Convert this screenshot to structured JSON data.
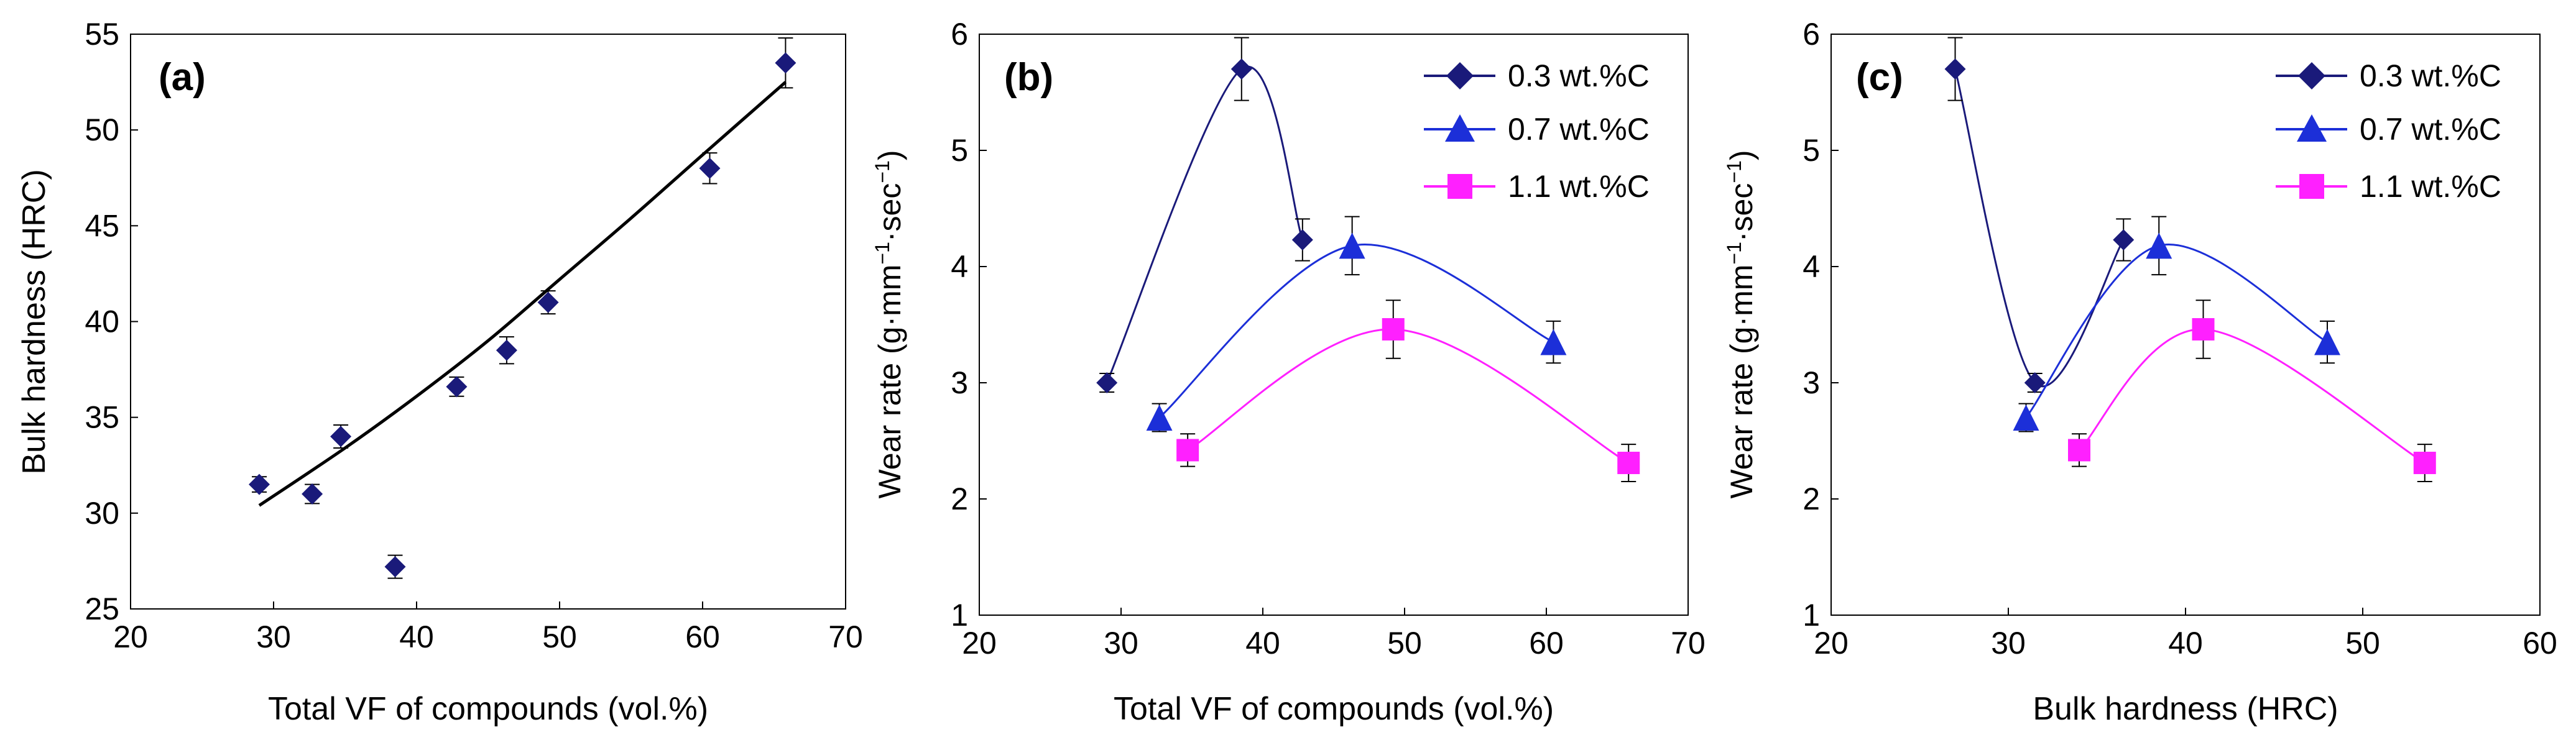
{
  "colors": {
    "c03": "#1a1a7a",
    "c07": "#1c2fd8",
    "c11": "#ff20ff",
    "fit": "#000000",
    "axis": "#000000",
    "errorbar": "#000000"
  },
  "chart_data": [
    {
      "type": "scatter",
      "panel_label": "(a)",
      "title": "",
      "xlabel": "Total VF of compounds (vol.%)",
      "ylabel": "Bulk hardness (HRC)",
      "xlim": [
        20,
        70
      ],
      "ylim": [
        25,
        55
      ],
      "xticks": [
        20,
        30,
        40,
        50,
        60,
        70
      ],
      "yticks": [
        25,
        30,
        35,
        40,
        45,
        50,
        55
      ],
      "xtick_labels": [
        "20",
        "30",
        "40",
        "50",
        "60",
        "70"
      ],
      "ytick_labels": [
        "25",
        "30",
        "35",
        "40",
        "45",
        "50",
        "55"
      ],
      "grid": false,
      "series": [
        {
          "name": "Bulk hardness",
          "marker": "diamond",
          "color_key": "c03",
          "x": [
            29,
            32.7,
            34.7,
            38.5,
            42.8,
            46.3,
            49.2,
            60.5,
            65.8
          ],
          "y": [
            31.5,
            31,
            34,
            27.2,
            36.6,
            38.5,
            41,
            48,
            53.5
          ],
          "err": [
            0.4,
            0.5,
            0.6,
            0.6,
            0.5,
            0.7,
            0.6,
            0.8,
            1.3
          ]
        }
      ],
      "fit_curve": {
        "name": "trend",
        "color_key": "fit",
        "x": [
          29,
          35,
          40,
          45,
          50,
          55,
          60,
          65.8
        ],
        "y": [
          30.4,
          33.4,
          36.1,
          39.0,
          42.2,
          45.4,
          48.7,
          52.5
        ]
      }
    },
    {
      "type": "line",
      "panel_label": "(b)",
      "title": "",
      "xlabel": "Total VF of compounds (vol.%)",
      "ylabel": "Wear rate (g·mm⁻¹·sec⁻¹)",
      "xlim": [
        20,
        70
      ],
      "ylim": [
        1,
        6
      ],
      "xticks": [
        20,
        30,
        40,
        50,
        60,
        70
      ],
      "yticks": [
        1,
        2,
        3,
        4,
        5,
        6
      ],
      "xtick_labels": [
        "20",
        "30",
        "40",
        "50",
        "60",
        "70"
      ],
      "ytick_labels": [
        "1",
        "2",
        "3",
        "4",
        "5",
        "6"
      ],
      "legend_position": "top-right",
      "grid": false,
      "series": [
        {
          "name": "0.3 wt.%C",
          "marker": "diamond",
          "color_key": "c03",
          "x": [
            29,
            38.5,
            42.8
          ],
          "y": [
            3,
            5.7,
            4.23
          ],
          "err": [
            0.08,
            0.27,
            0.18
          ]
        },
        {
          "name": "0.7 wt.%C",
          "marker": "triangle",
          "color_key": "c07",
          "x": [
            32.7,
            46.3,
            60.5
          ],
          "y": [
            2.7,
            4.18,
            3.35
          ],
          "err": [
            0.12,
            0.25,
            0.18
          ]
        },
        {
          "name": "1.1 wt.%C",
          "marker": "square",
          "color_key": "c11",
          "x": [
            34.7,
            49.2,
            65.8
          ],
          "y": [
            2.42,
            3.46,
            2.31
          ],
          "err": [
            0.14,
            0.25,
            0.16
          ]
        }
      ]
    },
    {
      "type": "line",
      "panel_label": "(c)",
      "title": "",
      "xlabel": "Bulk hardness (HRC)",
      "ylabel": "Wear rate (g·mm⁻¹·sec⁻¹)",
      "xlim": [
        20,
        60
      ],
      "ylim": [
        1,
        6
      ],
      "xticks": [
        20,
        30,
        40,
        50,
        60
      ],
      "yticks": [
        1,
        2,
        3,
        4,
        5,
        6
      ],
      "xtick_labels": [
        "20",
        "30",
        "40",
        "50",
        "60"
      ],
      "ytick_labels": [
        "1",
        "2",
        "3",
        "4",
        "5",
        "6"
      ],
      "legend_position": "top-right",
      "grid": false,
      "series": [
        {
          "name": "0.3 wt.%C",
          "marker": "diamond",
          "color_key": "c03",
          "x": [
            27,
            31.5,
            36.5
          ],
          "y": [
            5.7,
            3,
            4.23
          ],
          "err": [
            0.27,
            0.08,
            0.18
          ]
        },
        {
          "name": "0.7 wt.%C",
          "marker": "triangle",
          "color_key": "c07",
          "x": [
            31,
            38.5,
            48
          ],
          "y": [
            2.7,
            4.18,
            3.35
          ],
          "err": [
            0.12,
            0.25,
            0.18
          ]
        },
        {
          "name": "1.1 wt.%C",
          "marker": "square",
          "color_key": "c11",
          "x": [
            34,
            41,
            53.5
          ],
          "y": [
            2.42,
            3.46,
            2.31
          ],
          "err": [
            0.14,
            0.25,
            0.16
          ]
        }
      ]
    }
  ]
}
